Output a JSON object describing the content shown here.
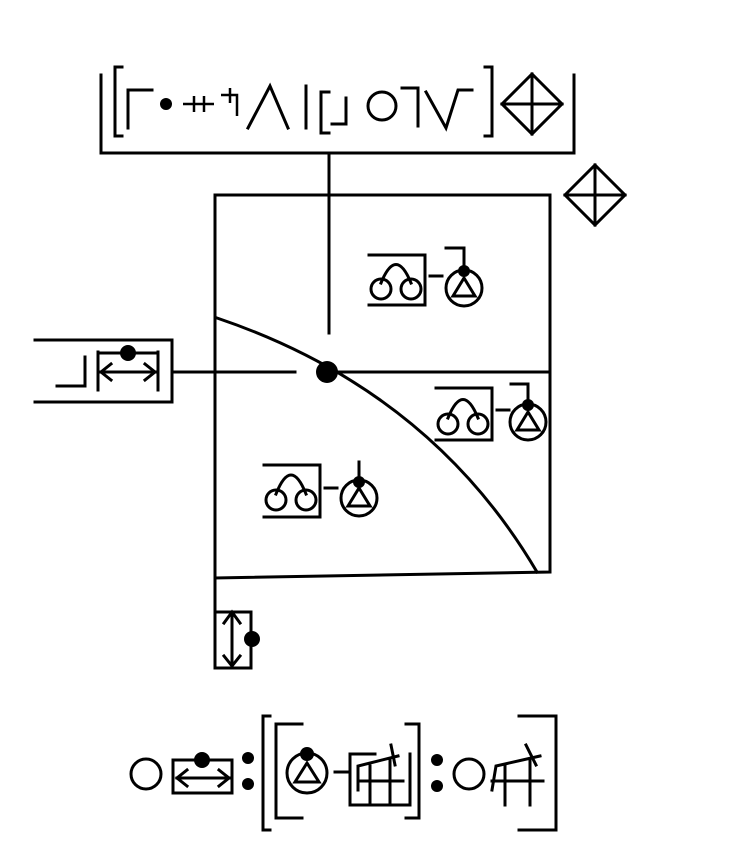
{
  "diagram": {
    "kind": "signwriting-composite",
    "background_color": "#ffffff",
    "ink_color": "#000000",
    "glyphs": [
      {
        "name": "header-notation-box"
      },
      {
        "name": "corner-diamond-icon"
      },
      {
        "name": "main-panel"
      },
      {
        "name": "left-arm-symbol"
      },
      {
        "name": "bottom-arrow-box"
      },
      {
        "name": "footer-sequence"
      }
    ]
  }
}
